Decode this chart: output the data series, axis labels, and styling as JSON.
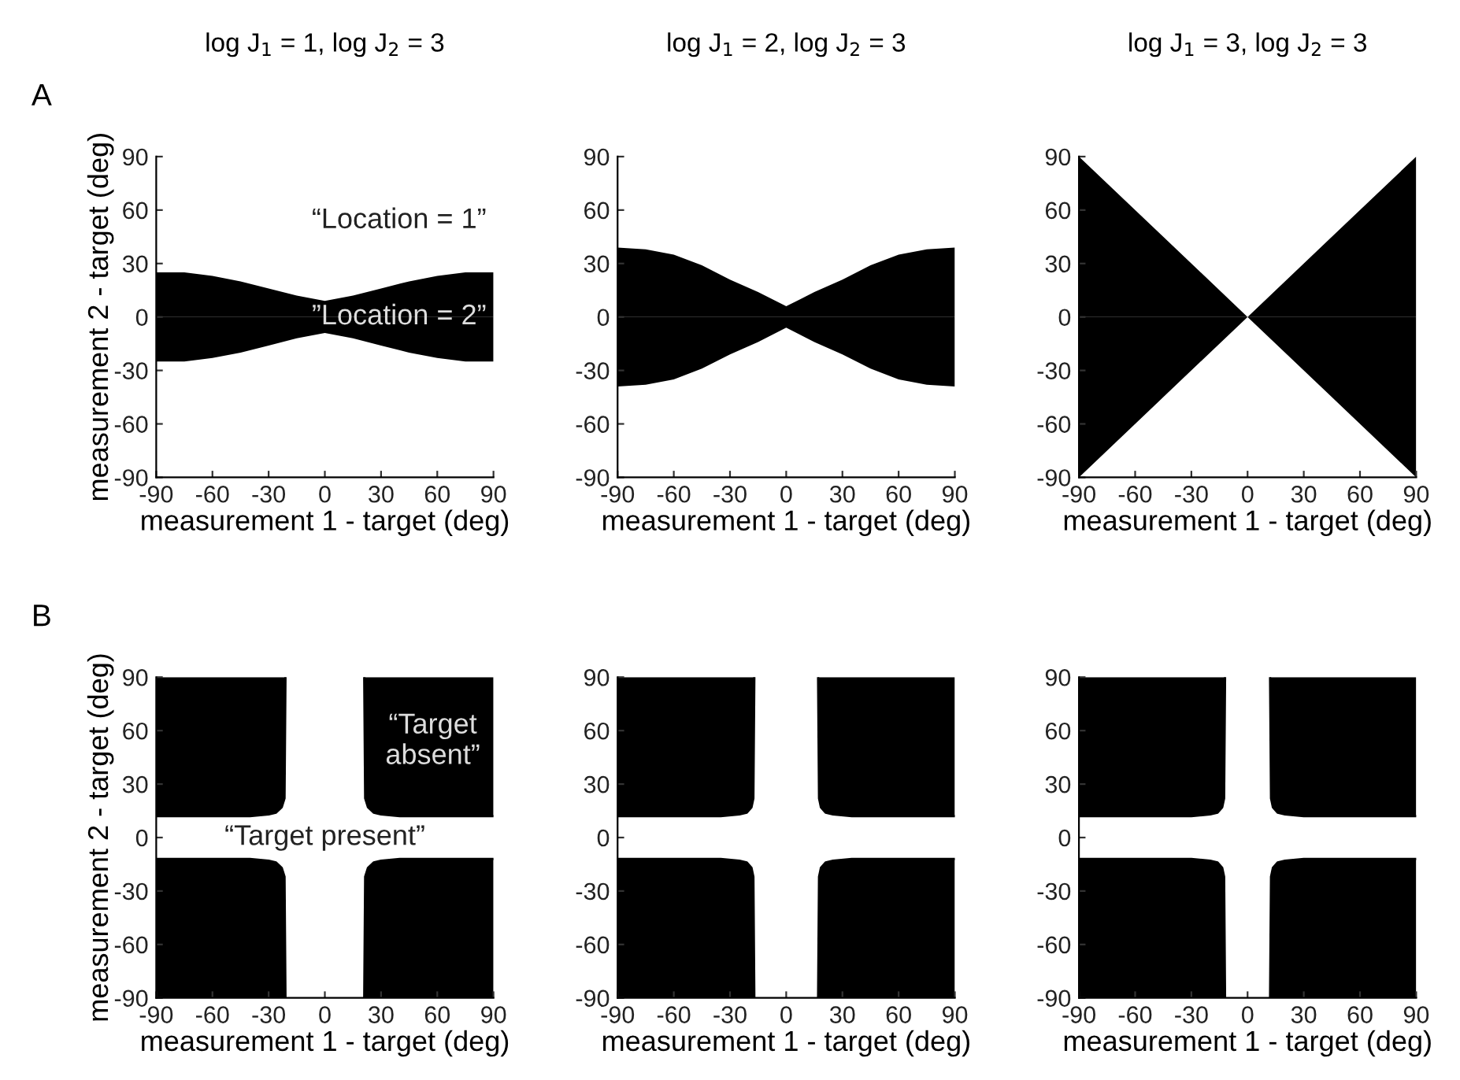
{
  "chart_data": [
    {
      "type": "area",
      "title": "log J$_{1}$ = 1, log J$_{2}$ = 3",
      "xlabel": "measurement 1 - target (deg)",
      "ylabel": "measurement 2 - target (deg)",
      "xlim": [
        -90,
        90
      ],
      "ylim": [
        -90,
        90
      ],
      "xticks": [
        -90,
        -60,
        -30,
        0,
        30,
        60,
        90
      ],
      "yticks": [
        -90,
        -60,
        -30,
        0,
        30,
        60,
        90
      ],
      "grid": false,
      "annotations": [
        "A",
        "“Location = 1”",
        "”Location = 2”"
      ],
      "x": [
        -90,
        -75,
        -60,
        -45,
        -30,
        -15,
        0,
        15,
        30,
        45,
        60,
        75,
        90
      ],
      "series": [
        {
          "color": "#000000",
          "values": [
            25,
            25,
            23,
            20,
            16,
            12,
            9,
            12,
            16,
            20,
            23,
            25,
            25
          ]
        },
        {
          "color": "#000000",
          "values": [
            -25,
            -25,
            -23,
            -20,
            -16,
            -12,
            -9,
            -12,
            -16,
            -20,
            -23,
            -25,
            -25
          ]
        }
      ]
    },
    {
      "type": "area",
      "title": "log J$_{1}$ = 2, log J$_{2}$ = 3",
      "xlabel": "measurement 1 - target (deg)",
      "xlim": [
        -90,
        90
      ],
      "ylim": [
        -90,
        90
      ],
      "xticks": [
        -90,
        -60,
        -30,
        0,
        30,
        60,
        90
      ],
      "yticks": [
        -90,
        -60,
        -30,
        0,
        30,
        60,
        90
      ],
      "grid": false,
      "x": [
        -90,
        -75,
        -60,
        -45,
        -30,
        -15,
        0,
        15,
        30,
        45,
        60,
        75,
        90
      ],
      "series": [
        {
          "color": "#000000",
          "values": [
            39,
            38,
            35,
            29,
            21,
            14,
            6,
            14,
            21,
            29,
            35,
            38,
            39
          ]
        },
        {
          "color": "#000000",
          "values": [
            -39,
            -38,
            -35,
            -29,
            -21,
            -14,
            -6,
            -14,
            -21,
            -29,
            -35,
            -38,
            -39
          ]
        }
      ]
    },
    {
      "type": "area",
      "title": "log J$_{1}$ = 3, log J$_{2}$ = 3",
      "xlabel": "measurement 1 - target (deg)",
      "xlim": [
        -90,
        90
      ],
      "ylim": [
        -90,
        90
      ],
      "xticks": [
        -90,
        -60,
        -30,
        0,
        30,
        60,
        90
      ],
      "yticks": [
        -90,
        -60,
        -30,
        0,
        30,
        60,
        90
      ],
      "grid": false,
      "x": [
        -90,
        -45,
        0,
        45,
        90
      ],
      "series": [
        {
          "color": "#000000",
          "values": [
            90,
            45,
            0,
            45,
            90
          ]
        },
        {
          "color": "#000000",
          "values": [
            -90,
            -45,
            0,
            -45,
            -90
          ]
        }
      ]
    },
    {
      "type": "line",
      "marker": "none",
      "line_style": "solid",
      "xlabel": "measurement 1 - target (deg)",
      "ylabel": "measurement 2 - target (deg)",
      "xlim": [
        -90,
        90
      ],
      "ylim": [
        -90,
        90
      ],
      "xticks": [
        -90,
        -60,
        -30,
        0,
        30,
        60,
        90
      ],
      "yticks": [
        -90,
        -60,
        -30,
        0,
        30,
        60,
        90
      ],
      "grid": false,
      "annotations": [
        "B",
        "“Target\nabsent”",
        "“Target present”"
      ],
      "series": [
        {
          "color": "#000000",
          "x": [
            -90,
            -40,
            -30,
            -26,
            -23,
            -21.5,
            -21
          ],
          "values": [
            12,
            12,
            13,
            14,
            17,
            22,
            90
          ],
          "lower": [
            12,
            12,
            13,
            14,
            17,
            22,
            90
          ],
          "upper": [
            90,
            90,
            90,
            90,
            90,
            90,
            90
          ]
        },
        {
          "color": "#000000",
          "x": [
            21,
            21.5,
            23,
            26,
            30,
            40,
            90
          ],
          "values": [
            90,
            22,
            17,
            14,
            13,
            12,
            12
          ],
          "lower": [
            90,
            22,
            17,
            14,
            13,
            12,
            12
          ],
          "upper": [
            90,
            90,
            90,
            90,
            90,
            90,
            90
          ]
        },
        {
          "color": "#000000",
          "x": [
            -90,
            -40,
            -30,
            -26,
            -23,
            -21.5,
            -21
          ],
          "values": [
            -12,
            -12,
            -13,
            -14,
            -17,
            -22,
            -90
          ],
          "lower": [
            -90,
            -90,
            -90,
            -90,
            -90,
            -90,
            -90
          ],
          "upper": [
            -12,
            -12,
            -13,
            -14,
            -17,
            -22,
            -90
          ]
        },
        {
          "color": "#000000",
          "x": [
            21,
            21.5,
            23,
            26,
            30,
            40,
            90
          ],
          "values": [
            -90,
            -22,
            -17,
            -14,
            -13,
            -12,
            -12
          ],
          "lower": [
            -90,
            -90,
            -90,
            -90,
            -90,
            -90,
            -90
          ],
          "upper": [
            -90,
            -22,
            -17,
            -14,
            -13,
            -12,
            -12
          ]
        }
      ]
    },
    {
      "type": "line",
      "marker": "none",
      "line_style": "solid",
      "xlabel": "measurement 1 - target (deg)",
      "xlim": [
        -90,
        90
      ],
      "ylim": [
        -90,
        90
      ],
      "xticks": [
        -90,
        -60,
        -30,
        0,
        30,
        60,
        90
      ],
      "yticks": [
        -90,
        -60,
        -30,
        0,
        30,
        60,
        90
      ],
      "grid": false,
      "series": [
        {
          "color": "#000000",
          "x": [
            -90,
            -35,
            -25,
            -21,
            -18.5,
            -17.5,
            -17
          ],
          "values": [
            12,
            12,
            13,
            14,
            17,
            22,
            90
          ],
          "lower": [
            12,
            12,
            13,
            14,
            17,
            22,
            90
          ],
          "upper": [
            90,
            90,
            90,
            90,
            90,
            90,
            90
          ]
        },
        {
          "color": "#000000",
          "x": [
            17,
            17.5,
            18.5,
            21,
            25,
            35,
            90
          ],
          "values": [
            90,
            22,
            17,
            14,
            13,
            12,
            12
          ],
          "lower": [
            90,
            22,
            17,
            14,
            13,
            12,
            12
          ],
          "upper": [
            90,
            90,
            90,
            90,
            90,
            90,
            90
          ]
        },
        {
          "color": "#000000",
          "x": [
            -90,
            -35,
            -25,
            -21,
            -18.5,
            -17.5,
            -17
          ],
          "values": [
            -12,
            -12,
            -13,
            -14,
            -17,
            -22,
            -90
          ],
          "lower": [
            -90,
            -90,
            -90,
            -90,
            -90,
            -90,
            -90
          ],
          "upper": [
            -12,
            -12,
            -13,
            -14,
            -17,
            -22,
            -90
          ]
        },
        {
          "color": "#000000",
          "x": [
            17,
            17.5,
            18.5,
            21,
            25,
            35,
            90
          ],
          "values": [
            -90,
            -22,
            -17,
            -14,
            -13,
            -12,
            -12
          ],
          "lower": [
            -90,
            -90,
            -90,
            -90,
            -90,
            -90,
            -90
          ],
          "upper": [
            -90,
            -22,
            -17,
            -14,
            -13,
            -12,
            -12
          ]
        }
      ]
    },
    {
      "type": "line",
      "marker": "none",
      "line_style": "solid",
      "xlabel": "measurement 1 - target (deg)",
      "xlim": [
        -90,
        90
      ],
      "ylim": [
        -90,
        90
      ],
      "xticks": [
        -90,
        -60,
        -30,
        0,
        30,
        60,
        90
      ],
      "yticks": [
        -90,
        -60,
        -30,
        0,
        30,
        60,
        90
      ],
      "grid": false,
      "series": [
        {
          "color": "#000000",
          "x": [
            -90,
            -30,
            -20,
            -16,
            -13.5,
            -12.5,
            -12
          ],
          "values": [
            12,
            12,
            13,
            14,
            17,
            22,
            90
          ],
          "lower": [
            12,
            12,
            13,
            14,
            17,
            22,
            90
          ],
          "upper": [
            90,
            90,
            90,
            90,
            90,
            90,
            90
          ]
        },
        {
          "color": "#000000",
          "x": [
            12,
            12.5,
            13.5,
            16,
            20,
            30,
            90
          ],
          "values": [
            90,
            22,
            17,
            14,
            13,
            12,
            12
          ],
          "lower": [
            90,
            22,
            17,
            14,
            13,
            12,
            12
          ],
          "upper": [
            90,
            90,
            90,
            90,
            90,
            90,
            90
          ]
        },
        {
          "color": "#000000",
          "x": [
            -90,
            -30,
            -20,
            -16,
            -13.5,
            -12.5,
            -12
          ],
          "values": [
            -12,
            -12,
            -13,
            -14,
            -17,
            -22,
            -90
          ],
          "lower": [
            -90,
            -90,
            -90,
            -90,
            -90,
            -90,
            -90
          ],
          "upper": [
            -12,
            -12,
            -13,
            -14,
            -17,
            -22,
            -90
          ]
        },
        {
          "color": "#000000",
          "x": [
            12,
            12.5,
            13.5,
            16,
            20,
            30,
            90
          ],
          "values": [
            -90,
            -22,
            -17,
            -14,
            -13,
            -12,
            -12
          ],
          "lower": [
            -90,
            -90,
            -90,
            -90,
            -90,
            -90,
            -90
          ],
          "upper": [
            -90,
            -22,
            -17,
            -14,
            -13,
            -12,
            -12
          ]
        }
      ]
    }
  ]
}
